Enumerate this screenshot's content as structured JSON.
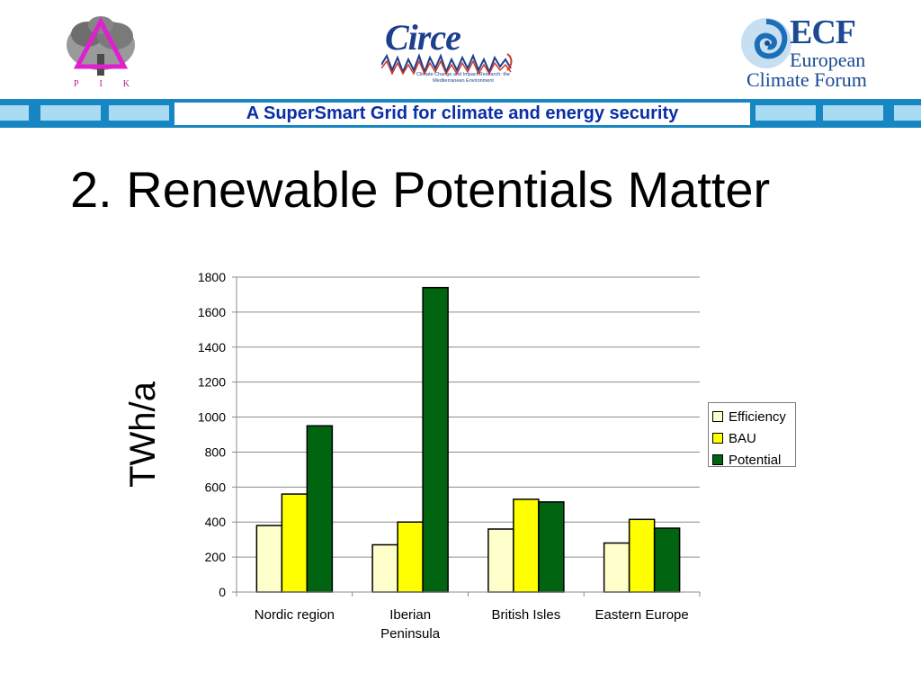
{
  "logos": {
    "pik": {
      "letters": [
        "P",
        "I",
        "K"
      ],
      "color": "#b0208f"
    },
    "circe": {
      "name": "Circe",
      "subtitle": "Climate Change and Impact Research: the Mediterranean Environment"
    },
    "ecf": {
      "abbrev": "ECF",
      "line1": "European",
      "line2": "Climate Forum"
    }
  },
  "banner": {
    "title": "A SuperSmart Grid for climate and energy security",
    "color": "#1787c4",
    "accent": "#a9dcf3"
  },
  "slide": {
    "title": "2. Renewable Potentials Matter"
  },
  "chart_data": {
    "type": "bar",
    "title": "",
    "xlabel": "",
    "ylabel": "TWh/a",
    "categories": [
      [
        "Nordic region"
      ],
      [
        "Iberian",
        "Peninsula"
      ],
      [
        "British Isles"
      ],
      [
        "Eastern Europe"
      ]
    ],
    "series": [
      {
        "name": "Efficiency",
        "color": "#ffffcc",
        "values": [
          380,
          270,
          360,
          280
        ]
      },
      {
        "name": "BAU",
        "color": "#ffff00",
        "values": [
          560,
          400,
          530,
          415
        ]
      },
      {
        "name": "Potential",
        "color": "#006411",
        "values": [
          950,
          1740,
          515,
          365
        ]
      }
    ],
    "ylim": [
      0,
      1800
    ],
    "yticks": [
      0,
      200,
      400,
      600,
      800,
      1000,
      1200,
      1400,
      1600,
      1800
    ],
    "grid": true,
    "legend_position": "right"
  }
}
